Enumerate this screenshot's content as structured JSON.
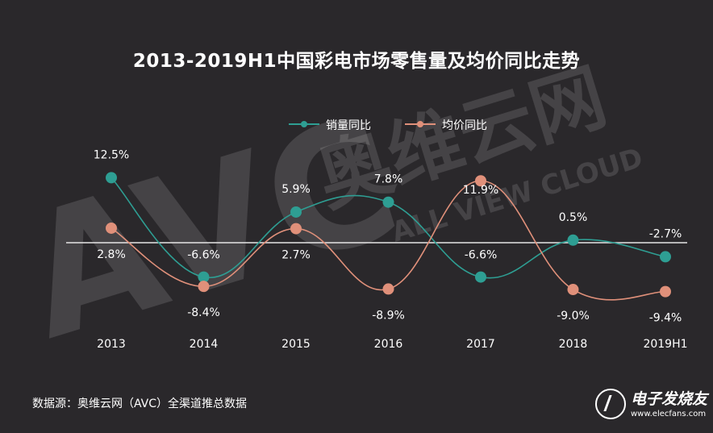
{
  "watermark": {
    "brand": "AVC",
    "cn": "奥维云网",
    "en": "ALL VIEW CLOUD"
  },
  "footer": {
    "source": "数据源：奥维云网（AVC）全渠道推总数据",
    "logo_name": "电子发烧友",
    "logo_url": "www.elecfans.com"
  },
  "chart_data": {
    "type": "line",
    "title": "2013-2019H1中国彩电市场零售量及均价同比走势",
    "categories": [
      "2013",
      "2014",
      "2015",
      "2016",
      "2017",
      "2018",
      "2019H1"
    ],
    "legend_position": "top-center",
    "grid": false,
    "ylim": [
      -12,
      14
    ],
    "baseline": 0,
    "series": [
      {
        "name": "销量同比",
        "color": "#2e9e93",
        "values": [
          12.5,
          -6.6,
          5.9,
          7.8,
          -6.6,
          0.5,
          -2.7
        ],
        "labels": [
          "12.5%",
          "-6.6%",
          "5.9%",
          "7.8%",
          "-6.6%",
          "0.5%",
          "-2.7%"
        ]
      },
      {
        "name": "均价同比",
        "color": "#e0907a",
        "values": [
          2.8,
          -8.4,
          2.7,
          -8.9,
          11.9,
          -9.0,
          -9.4
        ],
        "labels": [
          "2.8%",
          "-8.4%",
          "2.7%",
          "-8.9%",
          "11.9%",
          "-9.0%",
          "-9.4%"
        ]
      }
    ]
  }
}
